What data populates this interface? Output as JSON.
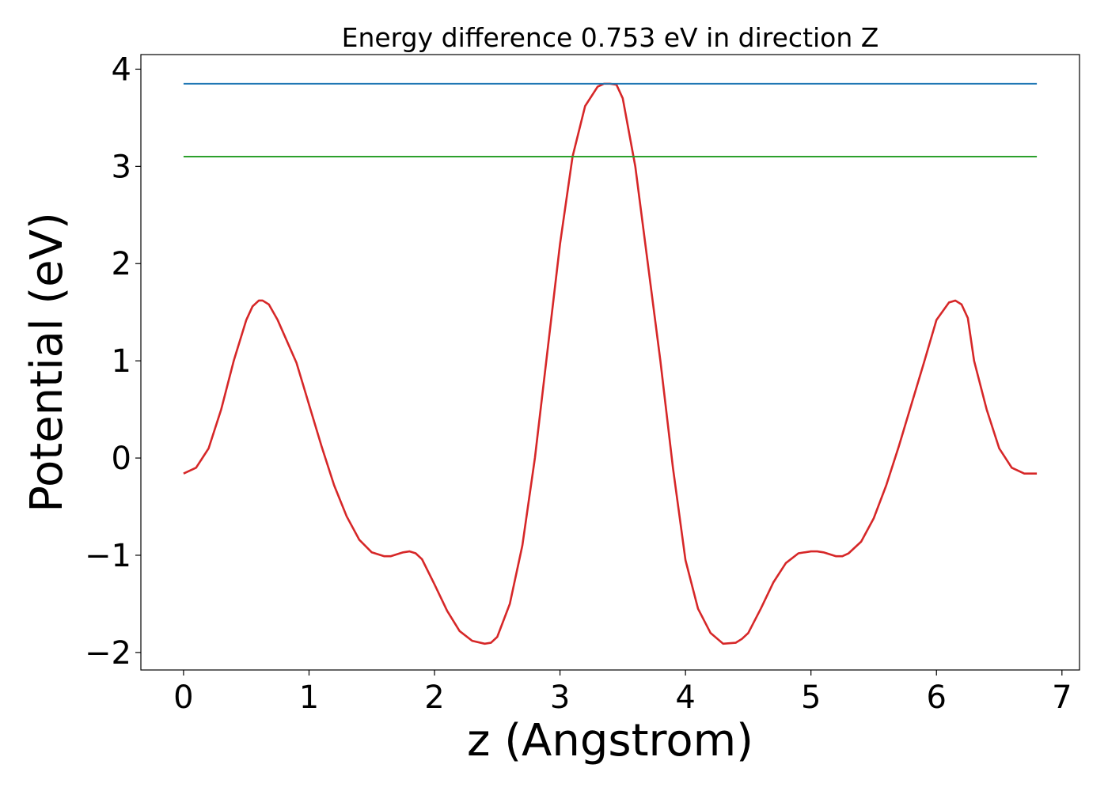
{
  "chart_data": {
    "type": "line",
    "title": "Energy difference 0.753 eV in direction Z",
    "xlabel": "z (Angstrom)",
    "ylabel": "Potential (eV)",
    "xlim": [
      -0.34,
      7.14
    ],
    "ylim": [
      -2.18,
      4.15
    ],
    "xticks": [
      0,
      1,
      2,
      3,
      4,
      5,
      6,
      7
    ],
    "yticks": [
      -2,
      -1,
      0,
      1,
      2,
      3,
      4
    ],
    "xtick_labels": [
      "0",
      "1",
      "2",
      "3",
      "4",
      "5",
      "6",
      "7"
    ],
    "ytick_labels": [
      "−2",
      "−1",
      "0",
      "1",
      "2",
      "3",
      "4"
    ],
    "grid": false,
    "series": [
      {
        "color": "#d62728",
        "style": "line",
        "x": [
          0.0,
          0.1,
          0.2,
          0.3,
          0.4,
          0.5,
          0.55,
          0.6,
          0.63,
          0.68,
          0.75,
          0.9,
          1.0,
          1.1,
          1.2,
          1.3,
          1.4,
          1.5,
          1.6,
          1.65,
          1.7,
          1.75,
          1.8,
          1.85,
          1.9,
          2.0,
          2.1,
          2.2,
          2.3,
          2.4,
          2.45,
          2.5,
          2.6,
          2.7,
          2.8,
          2.9,
          3.0,
          3.1,
          3.2,
          3.3,
          3.35,
          3.4,
          3.45,
          3.5,
          3.6,
          3.7,
          3.8,
          3.9,
          4.0,
          4.1,
          4.2,
          4.3,
          4.4,
          4.45,
          4.5,
          4.6,
          4.7,
          4.8,
          4.9,
          5.0,
          5.05,
          5.1,
          5.15,
          5.2,
          5.25,
          5.3,
          5.4,
          5.5,
          5.6,
          5.7,
          5.8,
          5.9,
          6.0,
          6.1,
          6.15,
          6.2,
          6.25,
          6.3,
          6.4,
          6.5,
          6.6,
          6.7,
          6.8
        ],
        "y": [
          -0.16,
          -0.1,
          0.1,
          0.5,
          1.0,
          1.42,
          1.56,
          1.62,
          1.62,
          1.58,
          1.42,
          0.98,
          0.55,
          0.12,
          -0.28,
          -0.6,
          -0.84,
          -0.97,
          -1.01,
          -1.01,
          -0.99,
          -0.97,
          -0.96,
          -0.98,
          -1.04,
          -1.3,
          -1.57,
          -1.78,
          -1.88,
          -1.91,
          -1.9,
          -1.84,
          -1.5,
          -0.9,
          0.0,
          1.1,
          2.2,
          3.1,
          3.62,
          3.82,
          3.85,
          3.85,
          3.84,
          3.7,
          3.0,
          2.0,
          1.0,
          -0.1,
          -1.05,
          -1.55,
          -1.8,
          -1.91,
          -1.9,
          -1.86,
          -1.8,
          -1.55,
          -1.28,
          -1.08,
          -0.98,
          -0.96,
          -0.96,
          -0.97,
          -0.99,
          -1.01,
          -1.01,
          -0.98,
          -0.86,
          -0.62,
          -0.28,
          0.12,
          0.55,
          0.98,
          1.42,
          1.6,
          1.62,
          1.58,
          1.44,
          1.0,
          0.5,
          0.1,
          -0.1,
          -0.16,
          -0.16
        ]
      },
      {
        "color": "#1f77b4",
        "style": "line",
        "x": [
          0.0,
          6.8
        ],
        "y": [
          3.85,
          3.85
        ]
      },
      {
        "color": "#2ca02c",
        "style": "line",
        "x": [
          0.0,
          6.8
        ],
        "y": [
          3.1,
          3.1
        ]
      }
    ]
  }
}
